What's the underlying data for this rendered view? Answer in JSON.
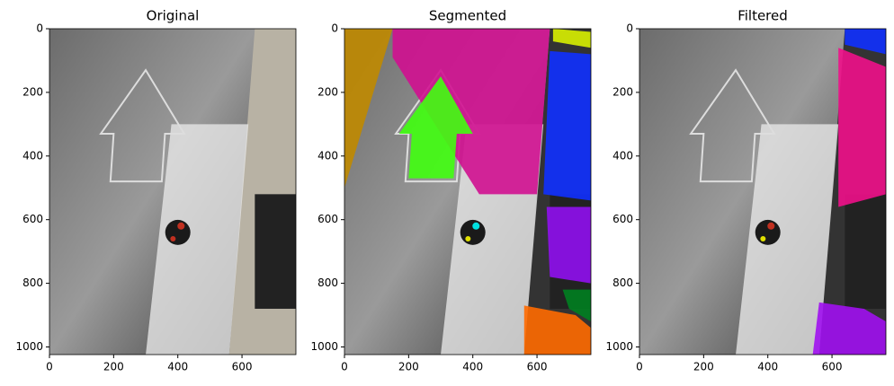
{
  "chart_data": [
    {
      "type": "image",
      "title": "Original",
      "xlim": [
        0,
        768
      ],
      "ylim": [
        1024,
        0
      ],
      "xticks": [
        0,
        200,
        400,
        600
      ],
      "yticks": [
        0,
        200,
        400,
        600,
        800,
        1000
      ]
    },
    {
      "type": "image",
      "title": "Segmented",
      "xlim": [
        0,
        768
      ],
      "ylim": [
        1024,
        0
      ],
      "xticks": [
        0,
        200,
        400,
        600
      ],
      "yticks": [
        0,
        200,
        400,
        600,
        800,
        1000
      ]
    },
    {
      "type": "image",
      "title": "Filtered",
      "xlim": [
        0,
        768
      ],
      "ylim": [
        1024,
        0
      ],
      "xticks": [
        0,
        200,
        400,
        600
      ],
      "yticks": [
        0,
        200,
        400,
        600,
        800,
        1000
      ]
    }
  ]
}
